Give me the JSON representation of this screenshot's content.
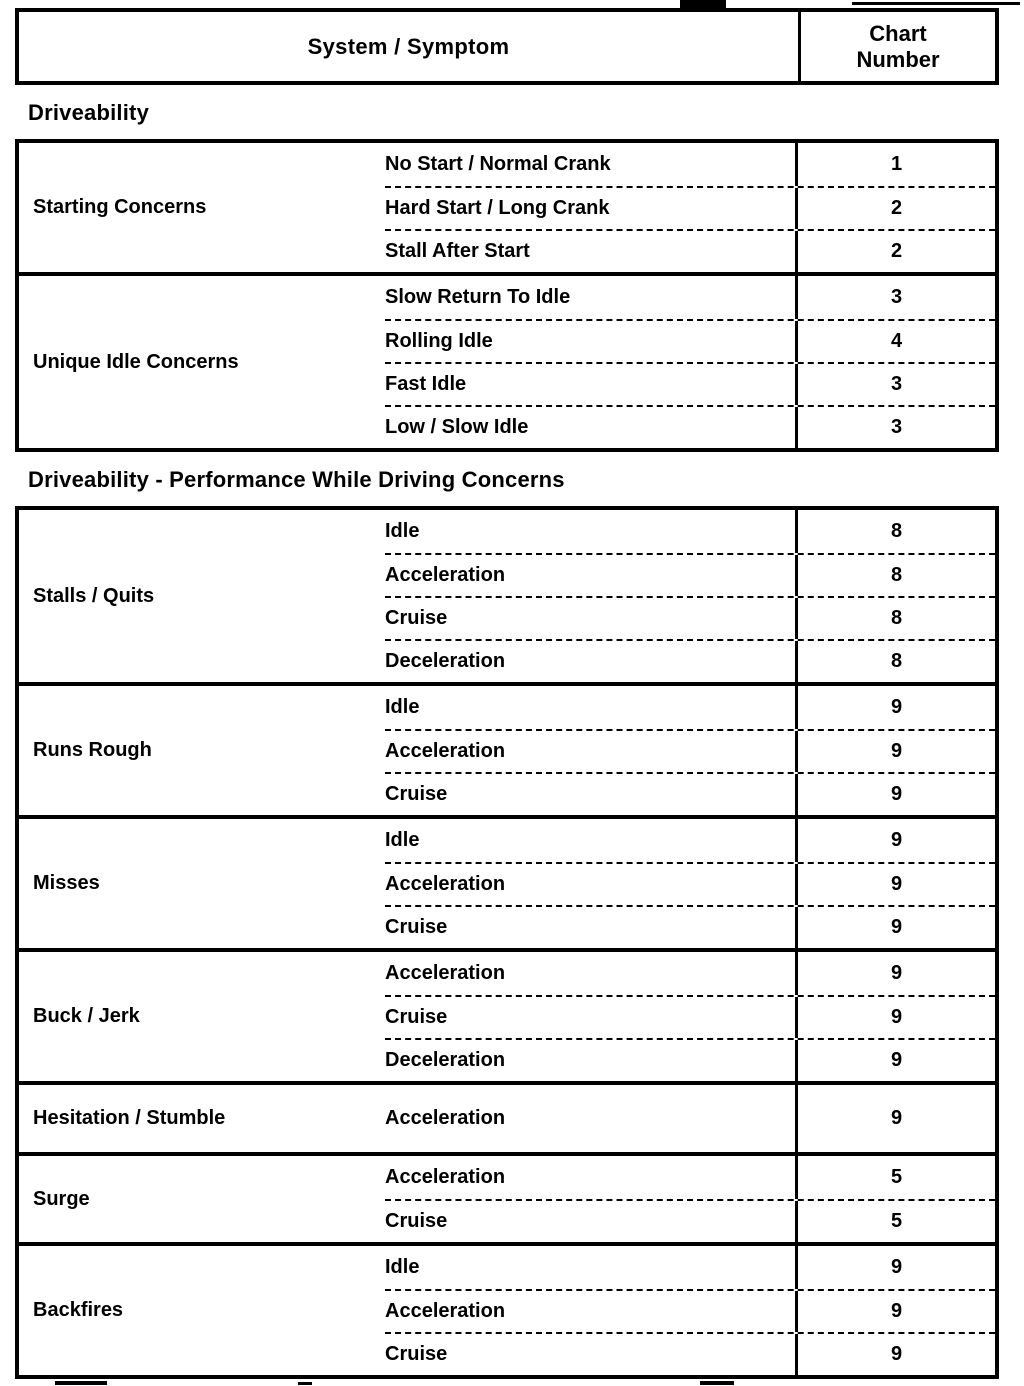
{
  "header": {
    "system_symptom": "System / Symptom",
    "chart_number": "Chart\nNumber"
  },
  "sections": [
    {
      "heading": "Driveability",
      "groups": [
        {
          "label": "Starting Concerns",
          "rows": [
            {
              "symptom": "No Start / Normal Crank",
              "chart": "1"
            },
            {
              "symptom": "Hard Start / Long Crank",
              "chart": "2"
            },
            {
              "symptom": "Stall After Start",
              "chart": "2"
            }
          ]
        },
        {
          "label": "Unique Idle Concerns",
          "rows": [
            {
              "symptom": "Slow Return To Idle",
              "chart": "3"
            },
            {
              "symptom": "Rolling Idle",
              "chart": "4"
            },
            {
              "symptom": "Fast Idle",
              "chart": "3"
            },
            {
              "symptom": "Low / Slow Idle",
              "chart": "3"
            }
          ]
        }
      ]
    },
    {
      "heading": "Driveability - Performance While Driving Concerns",
      "groups": [
        {
          "label": "Stalls / Quits",
          "rows": [
            {
              "symptom": "Idle",
              "chart": "8"
            },
            {
              "symptom": "Acceleration",
              "chart": "8"
            },
            {
              "symptom": "Cruise",
              "chart": "8"
            },
            {
              "symptom": "Deceleration",
              "chart": "8"
            }
          ]
        },
        {
          "label": "Runs Rough",
          "rows": [
            {
              "symptom": "Idle",
              "chart": "9"
            },
            {
              "symptom": "Acceleration",
              "chart": "9"
            },
            {
              "symptom": "Cruise",
              "chart": "9"
            }
          ]
        },
        {
          "label": "Misses",
          "rows": [
            {
              "symptom": "Idle",
              "chart": "9"
            },
            {
              "symptom": "Acceleration",
              "chart": "9"
            },
            {
              "symptom": "Cruise",
              "chart": "9"
            }
          ]
        },
        {
          "label": "Buck / Jerk",
          "rows": [
            {
              "symptom": "Acceleration",
              "chart": "9"
            },
            {
              "symptom": "Cruise",
              "chart": "9"
            },
            {
              "symptom": "Deceleration",
              "chart": "9"
            }
          ]
        },
        {
          "label": "Hesitation / Stumble",
          "rows": [
            {
              "symptom": "Acceleration",
              "chart": "9"
            }
          ]
        },
        {
          "label": "Surge",
          "rows": [
            {
              "symptom": "Acceleration",
              "chart": "5"
            },
            {
              "symptom": "Cruise",
              "chart": "5"
            }
          ]
        },
        {
          "label": "Backfires",
          "rows": [
            {
              "symptom": "Idle",
              "chart": "9"
            },
            {
              "symptom": "Acceleration",
              "chart": "9"
            },
            {
              "symptom": "Cruise",
              "chart": "9"
            }
          ]
        }
      ]
    }
  ]
}
